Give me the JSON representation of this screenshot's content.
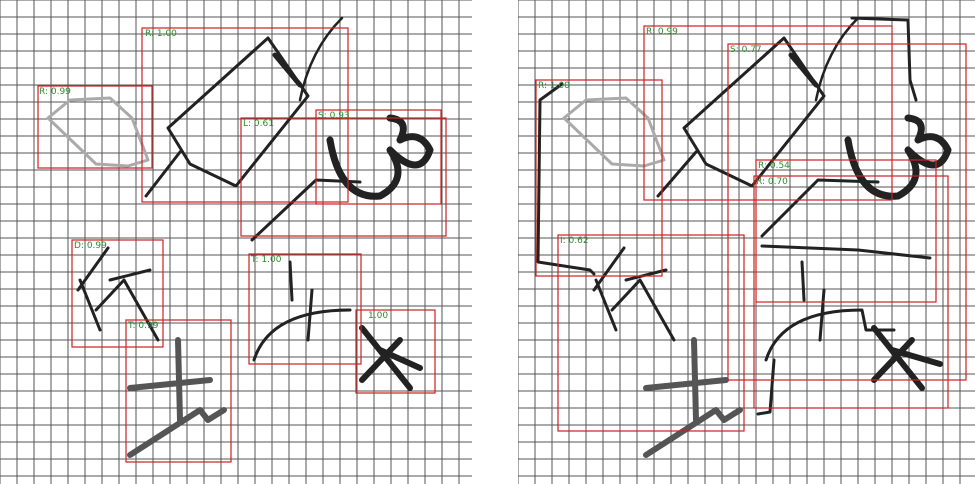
{
  "colors": {
    "grid": "#555555",
    "box": "#cc2222",
    "label": "#2e8b2e",
    "stroke": "#222222"
  },
  "left_panel": {
    "detections": [
      {
        "id": "l1",
        "label": "R: 1.00"
      },
      {
        "id": "l2",
        "label": "R: 0.99"
      },
      {
        "id": "l3",
        "label": "L: 0.61"
      },
      {
        "id": "l4",
        "label": "S: 0.93"
      },
      {
        "id": "l5",
        "label": "D: 0.99"
      },
      {
        "id": "l6",
        "label": "T: 1.00"
      },
      {
        "id": "l7",
        "label": "T: 0.99"
      },
      {
        "id": "l8",
        "label": "1.00"
      }
    ]
  },
  "right_panel": {
    "detections": [
      {
        "id": "r1",
        "label": "R: 0.99"
      },
      {
        "id": "r2",
        "label": "S: 0.77"
      },
      {
        "id": "r3",
        "label": "R: 1.00"
      },
      {
        "id": "r4",
        "label": "R: 0.54"
      },
      {
        "id": "r5",
        "label": "R: 0.70"
      },
      {
        "id": "r6",
        "label": "I: 0.62"
      }
    ]
  }
}
